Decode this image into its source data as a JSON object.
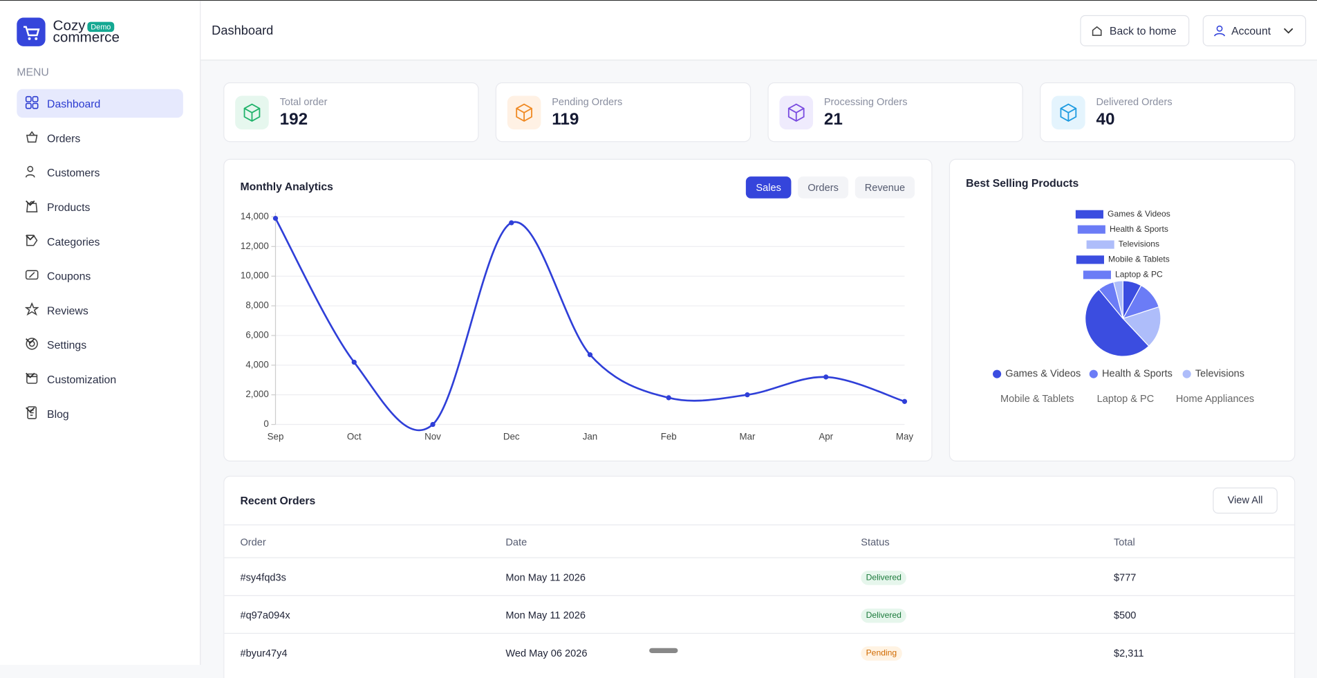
{
  "brand": {
    "name": "Cozy",
    "sub": "commerce",
    "badge": "Demo"
  },
  "menu_label": "MENU",
  "menu": [
    "Dashboard",
    "Orders",
    "Customers",
    "Products",
    "Categories",
    "Coupons",
    "Reviews",
    "Settings",
    "Customization",
    "Blog"
  ],
  "header": {
    "title": "Dashboard",
    "back": "Back to home",
    "account": "Account"
  },
  "stats": [
    {
      "label": "Total order",
      "value": "192"
    },
    {
      "label": "Pending Orders",
      "value": "119"
    },
    {
      "label": "Processing Orders",
      "value": "21"
    },
    {
      "label": "Delivered Orders",
      "value": "40"
    }
  ],
  "analytics_tabs": [
    "Sales",
    "Orders",
    "Revenue"
  ],
  "chart_data": [
    {
      "type": "line",
      "title": "Monthly Analytics",
      "categories": [
        "Sep",
        "Oct",
        "Nov",
        "Dec",
        "Jan",
        "Feb",
        "Mar",
        "Apr",
        "May"
      ],
      "series": [
        {
          "color": "#2f3fd8",
          "values": [
            13900,
            4200,
            0,
            13600,
            4700,
            1800,
            2000,
            3200,
            1550
          ]
        }
      ],
      "ylim": [
        0,
        14000
      ],
      "yticks": [
        0,
        {
          "value": 2000,
          "label": "2,000"
        },
        {
          "value": 4000,
          "label": "4,000"
        },
        {
          "value": 6000,
          "label": "6,000"
        },
        {
          "value": 8000,
          "label": "8,000"
        },
        {
          "value": 10000,
          "label": "10,000"
        },
        {
          "value": 12000,
          "label": "12,000"
        },
        {
          "value": 14000,
          "label": "14,000"
        }
      ],
      "grid": true
    },
    {
      "type": "pie",
      "title": "Best Selling Products",
      "categories": [
        "Games & Videos",
        "Health & Sports",
        "Televisions",
        "Mobile & Tablets",
        "Laptop & PC",
        "Home Appliances"
      ],
      "values": [
        8,
        12,
        18,
        51,
        7,
        4
      ],
      "colors": [
        "#3b4de0",
        "#6b7cf6",
        "#aebdfa",
        "#3b4de0",
        "#6b7cf6",
        "#aebdfa"
      ]
    }
  ],
  "orders": {
    "title": "Recent Orders",
    "view_all": "View All",
    "columns": [
      "Order",
      "Date",
      "Status",
      "Total"
    ],
    "rows": [
      [
        "#sy4fqd3s",
        "Mon May 11 2026",
        "Delivered",
        "$777"
      ],
      [
        "#q97a094x",
        "Mon May 11 2026",
        "Delivered",
        "$500"
      ],
      [
        "#byur47y4",
        "Wed May 06 2026",
        "Pending",
        "$2,311"
      ]
    ]
  }
}
